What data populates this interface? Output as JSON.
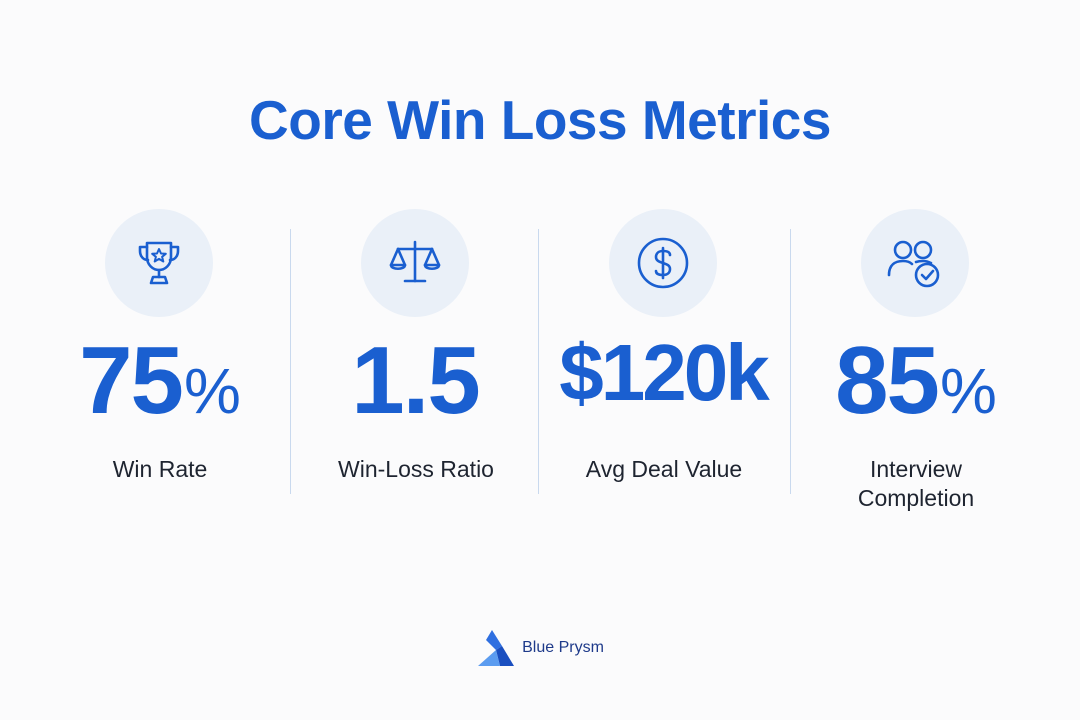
{
  "title": "Core Win Loss Metrics",
  "accent_color": "#1a5fd0",
  "metrics": [
    {
      "icon": "trophy-icon",
      "value": "75",
      "unit": "%",
      "label": "Win Rate"
    },
    {
      "icon": "scale-icon",
      "value": "1.5",
      "unit": "",
      "label": "Win-Loss Ratio"
    },
    {
      "icon": "dollar-icon",
      "value": "$120k",
      "unit": "",
      "label": "Avg Deal Value"
    },
    {
      "icon": "users-check-icon",
      "value": "85",
      "unit": "%",
      "label_line1": "Interview",
      "label_line2": "Completion"
    }
  ],
  "footer": {
    "brand": "Blue Prysm"
  }
}
